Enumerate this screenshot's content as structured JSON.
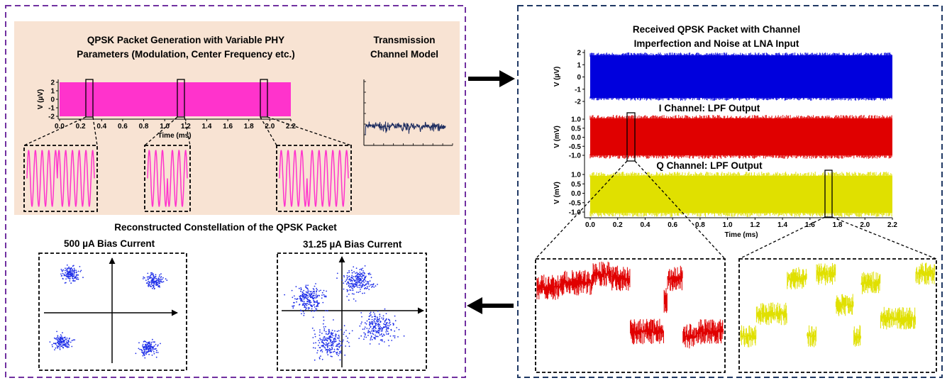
{
  "left_panel": {
    "gen_title_line1": "QPSK Packet Generation with Variable PHY",
    "gen_title_line2": "Parameters (Modulation, Center Frequency etc.)",
    "channel_title_line1": "Transmission",
    "channel_title_line2": "Channel Model",
    "constellation_title": "Reconstructed Constellation of the QPSK Packet",
    "bias_left_label": "500 µA Bias Current",
    "bias_right_label": "31.25 µA Bias Current",
    "tx_plot": {
      "ylabel": "V (µV)",
      "xlabel": "Time (ms)",
      "yticks": [
        "2",
        "1",
        "0",
        "-1",
        "-2"
      ],
      "xticks": [
        "0.0",
        "0.2",
        "0.4",
        "0.6",
        "0.8",
        "1.0",
        "1.2",
        "1.4",
        "1.6",
        "1.8",
        "2.0",
        "2.2"
      ]
    }
  },
  "right_panel": {
    "rx_title_line1": "Received QPSK Packet with Channel",
    "rx_title_line2": "Imperfection and Noise at LNA Input",
    "i_channel_title": "I Channel: LPF Output",
    "q_channel_title": "Q Channel: LPF Output",
    "rx_plot": {
      "ylabel": "V (µV)",
      "yticks": [
        "2",
        "1",
        "0",
        "-1",
        "-2"
      ]
    },
    "i_plot": {
      "ylabel": "V (mV)",
      "yticks": [
        "1.0",
        "0.5",
        "0.0",
        "-0.5",
        "-1.0"
      ]
    },
    "q_plot": {
      "ylabel": "V (mV)",
      "yticks": [
        "1.0",
        "0.5",
        "0.0",
        "-0.5",
        "-1.0"
      ]
    },
    "xlabel": "Time (ms)",
    "xticks": [
      "0.0",
      "0.2",
      "0.4",
      "0.6",
      "0.8",
      "1.0",
      "1.2",
      "1.4",
      "1.6",
      "1.8",
      "2.0",
      "2.2"
    ]
  },
  "colors": {
    "left_border": "#7030a0",
    "right_border": "#1f3864",
    "peach_bg": "#f8e3d3",
    "magenta": "#ff33cc",
    "navy": "#1a2a5e",
    "blue": "#0000dd",
    "red": "#e00000",
    "yellow": "#e0e000",
    "constellation": "#1f2fe8"
  }
}
